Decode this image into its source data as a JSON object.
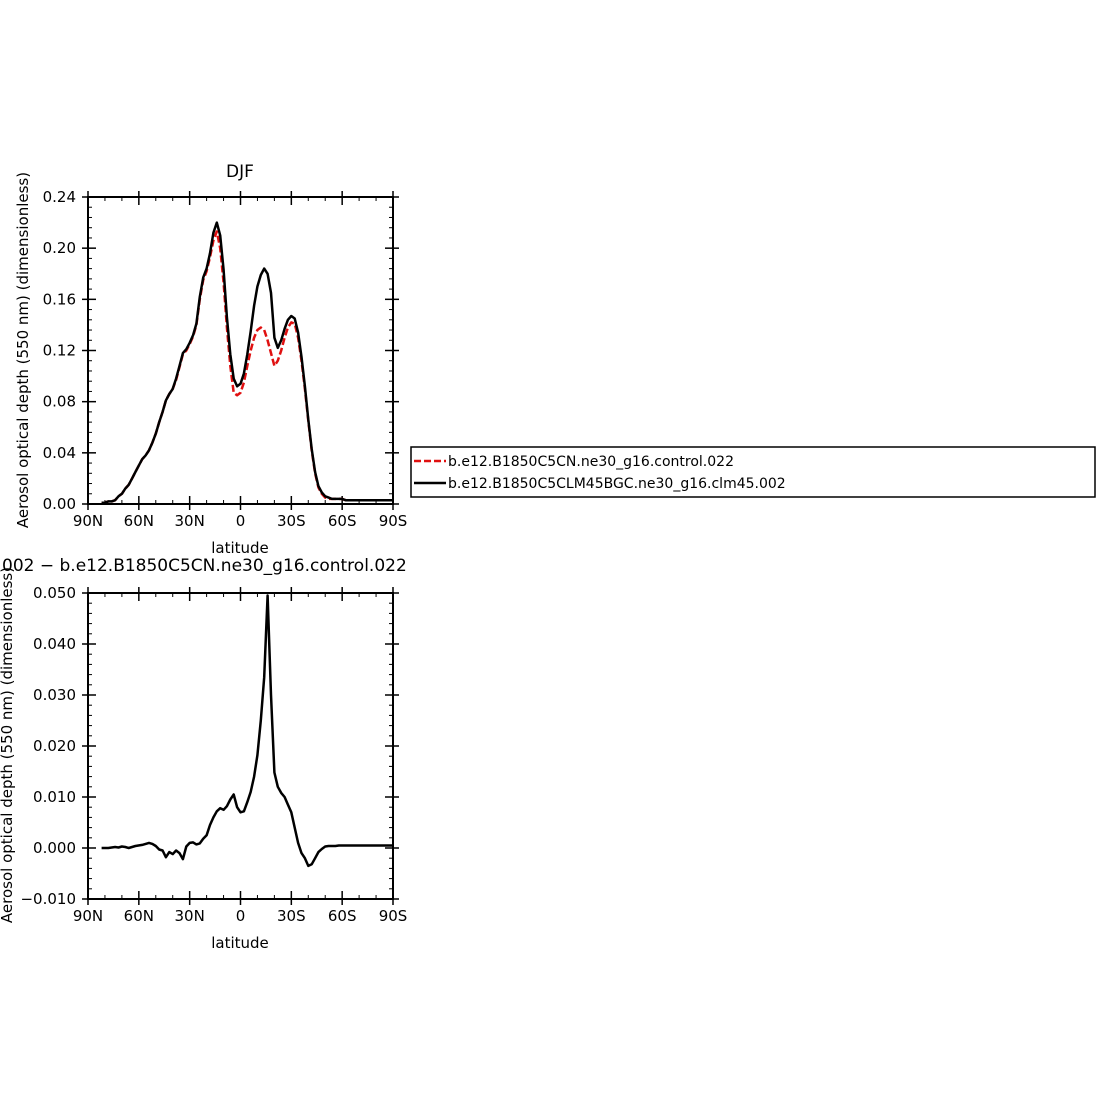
{
  "colors": {
    "control": "#e01010",
    "clm45": "#000000"
  },
  "chart_data": [
    {
      "type": "line",
      "title": "DJF",
      "xlabel": "latitude",
      "ylabel": "Aerosol optical depth (550 nm) (dimensionless)",
      "xlim": [
        90,
        -90
      ],
      "ylim": [
        0.0,
        0.24
      ],
      "xticks": [
        90,
        60,
        30,
        0,
        -30,
        -60,
        -90
      ],
      "xtick_labels": [
        "90N",
        "60N",
        "30N",
        "0",
        "30S",
        "60S",
        "90S"
      ],
      "yticks": [
        0.0,
        0.04,
        0.08,
        0.12,
        0.16,
        0.2,
        0.24
      ],
      "ytick_labels": [
        "0.00",
        "0.04",
        "0.08",
        "0.12",
        "0.16",
        "0.20",
        "0.24"
      ],
      "legend": "right",
      "series": [
        {
          "name": "b.e12.B1850C5CN.ne30_g16.control.022",
          "color": "#e01010",
          "dash": true,
          "x": [
            82,
            80,
            78,
            76,
            74,
            72,
            70,
            68,
            66,
            64,
            62,
            60,
            58,
            56,
            54,
            52,
            50,
            48,
            46,
            44,
            42,
            40,
            38,
            36,
            34,
            32,
            30,
            28,
            26,
            24,
            22,
            20,
            18,
            16,
            14,
            12,
            10,
            8,
            6,
            4,
            2,
            0,
            -2,
            -4,
            -6,
            -8,
            -10,
            -12,
            -14,
            -16,
            -18,
            -20,
            -22,
            -24,
            -26,
            -28,
            -30,
            -32,
            -34,
            -36,
            -38,
            -40,
            -42,
            -44,
            -46,
            -48,
            -50,
            -52,
            -54,
            -56,
            -58,
            -60,
            -62,
            -64,
            -66,
            -70,
            -74,
            -78,
            -82,
            -86,
            -90
          ],
          "values": [
            0.001,
            0.001,
            0.002,
            0.002,
            0.003,
            0.006,
            0.008,
            0.012,
            0.015,
            0.02,
            0.025,
            0.03,
            0.035,
            0.038,
            0.042,
            0.048,
            0.055,
            0.064,
            0.072,
            0.081,
            0.086,
            0.09,
            0.097,
            0.107,
            0.117,
            0.12,
            0.125,
            0.131,
            0.14,
            0.16,
            0.175,
            0.182,
            0.193,
            0.206,
            0.213,
            0.2,
            0.173,
            0.138,
            0.108,
            0.087,
            0.085,
            0.087,
            0.095,
            0.108,
            0.12,
            0.13,
            0.136,
            0.138,
            0.136,
            0.128,
            0.118,
            0.108,
            0.112,
            0.12,
            0.13,
            0.138,
            0.142,
            0.141,
            0.13,
            0.112,
            0.09,
            0.065,
            0.042,
            0.024,
            0.013,
            0.008,
            0.005,
            0.004,
            0.004,
            0.004,
            0.004,
            0.004,
            0.003,
            0.003,
            0.003,
            0.003,
            0.003,
            0.003,
            0.003,
            0.003,
            0.003
          ]
        },
        {
          "name": "b.e12.B1850C5CLM45BGC.ne30_g16.clm45.002",
          "color": "#000000",
          "dash": false,
          "x": [
            82,
            80,
            78,
            76,
            74,
            72,
            70,
            68,
            66,
            64,
            62,
            60,
            58,
            56,
            54,
            52,
            50,
            48,
            46,
            44,
            42,
            40,
            38,
            36,
            34,
            32,
            30,
            28,
            26,
            24,
            22,
            20,
            18,
            16,
            14,
            12,
            10,
            8,
            6,
            4,
            2,
            0,
            -2,
            -4,
            -6,
            -8,
            -10,
            -12,
            -14,
            -16,
            -18,
            -20,
            -22,
            -24,
            -26,
            -28,
            -30,
            -32,
            -34,
            -36,
            -38,
            -40,
            -42,
            -44,
            -46,
            -48,
            -50,
            -52,
            -54,
            -56,
            -58,
            -60,
            -62,
            -64,
            -66,
            -70,
            -74,
            -78,
            -82,
            -86,
            -90
          ],
          "values": [
            0.001,
            0.001,
            0.002,
            0.002,
            0.003,
            0.006,
            0.008,
            0.012,
            0.015,
            0.02,
            0.025,
            0.03,
            0.035,
            0.038,
            0.042,
            0.048,
            0.055,
            0.064,
            0.072,
            0.081,
            0.086,
            0.09,
            0.098,
            0.108,
            0.118,
            0.121,
            0.126,
            0.132,
            0.141,
            0.162,
            0.177,
            0.184,
            0.196,
            0.212,
            0.22,
            0.21,
            0.183,
            0.146,
            0.117,
            0.098,
            0.092,
            0.094,
            0.102,
            0.117,
            0.135,
            0.155,
            0.17,
            0.179,
            0.184,
            0.18,
            0.165,
            0.13,
            0.122,
            0.128,
            0.137,
            0.144,
            0.147,
            0.145,
            0.134,
            0.115,
            0.092,
            0.066,
            0.043,
            0.025,
            0.014,
            0.009,
            0.006,
            0.005,
            0.004,
            0.004,
            0.004,
            0.004,
            0.003,
            0.003,
            0.003,
            0.003,
            0.003,
            0.003,
            0.003,
            0.003,
            0.003
          ]
        }
      ]
    },
    {
      "type": "line",
      "title": "002 − b.e12.B1850C5CN.ne30_g16.control.022",
      "xlabel": "latitude",
      "ylabel": "Aerosol optical depth (550 nm) (dimensionless)",
      "xlim": [
        90,
        -90
      ],
      "ylim": [
        -0.01,
        0.05
      ],
      "xticks": [
        90,
        60,
        30,
        0,
        -30,
        -60,
        -90
      ],
      "xtick_labels": [
        "90N",
        "60N",
        "30N",
        "0",
        "30S",
        "60S",
        "90S"
      ],
      "yticks": [
        -0.01,
        0.0,
        0.01,
        0.02,
        0.03,
        0.04,
        0.05
      ],
      "ytick_labels": [
        "−0.010",
        "0.000",
        "0.010",
        "0.020",
        "0.030",
        "0.040",
        "0.050"
      ],
      "series": [
        {
          "color": "#000000",
          "dash": false,
          "x": [
            82,
            78,
            74,
            72,
            70,
            68,
            66,
            62,
            58,
            56,
            54,
            52,
            50,
            48,
            46,
            44,
            42,
            40,
            38,
            36,
            34,
            32,
            30,
            28,
            26,
            24,
            22,
            20,
            18,
            16,
            14,
            12,
            10,
            8,
            6,
            4,
            2,
            0,
            -2,
            -4,
            -6,
            -8,
            -10,
            -12,
            -14,
            -16,
            -18,
            -20,
            -22,
            -24,
            -26,
            -28,
            -30,
            -32,
            -34,
            -36,
            -38,
            -40,
            -42,
            -44,
            -46,
            -48,
            -50,
            -52,
            -54,
            -56,
            -58,
            -60,
            -62,
            -64,
            -66,
            -70,
            -74,
            -78,
            -82,
            -86,
            -90
          ],
          "values": [
            0.0,
            0.0,
            0.0002,
            0.0001,
            0.0003,
            0.0002,
            0.0,
            0.0004,
            0.0006,
            0.0008,
            0.001,
            0.0008,
            0.0004,
            -0.0003,
            -0.0005,
            -0.0018,
            -0.0008,
            -0.0012,
            -0.0005,
            -0.001,
            -0.0022,
            0.0003,
            0.001,
            0.0011,
            0.0007,
            0.0009,
            0.0018,
            0.0025,
            0.0045,
            0.006,
            0.0072,
            0.0078,
            0.0075,
            0.0082,
            0.0095,
            0.0105,
            0.008,
            0.007,
            0.0072,
            0.009,
            0.011,
            0.014,
            0.0182,
            0.025,
            0.0335,
            0.0495,
            0.03,
            0.0148,
            0.012,
            0.0108,
            0.01,
            0.0085,
            0.007,
            0.004,
            0.001,
            -0.001,
            -0.002,
            -0.0035,
            -0.0032,
            -0.002,
            -0.0008,
            -0.0002,
            0.0003,
            0.0004,
            0.0004,
            0.0004,
            0.0005,
            0.0005,
            0.0005,
            0.0005,
            0.0005,
            0.0005,
            0.0005,
            0.0005,
            0.0005,
            0.0005,
            0.0005
          ]
        }
      ]
    }
  ]
}
